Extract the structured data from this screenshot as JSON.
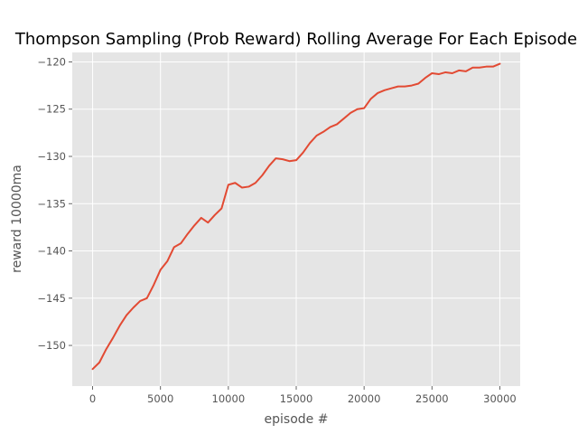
{
  "chart_data": {
    "type": "line",
    "title": "Thompson Sampling (Prob Reward) Rolling Average For Each Episode",
    "xlabel": "episode #",
    "ylabel": "reward 10000ma",
    "xlim": [
      -1500,
      31500
    ],
    "ylim": [
      -154.3,
      -119.0
    ],
    "xticks": [
      0,
      5000,
      10000,
      15000,
      20000,
      25000,
      30000
    ],
    "xtick_labels": [
      "0",
      "5000",
      "10000",
      "15000",
      "20000",
      "25000",
      "30000"
    ],
    "yticks": [
      -150,
      -145,
      -140,
      -135,
      -130,
      -125,
      -120
    ],
    "ytick_labels": [
      "−150",
      "−145",
      "−140",
      "−135",
      "−130",
      "−125",
      "−120"
    ],
    "grid": true,
    "legend": "none",
    "series": [
      {
        "x": [
          0,
          500,
          1000,
          1500,
          2000,
          2500,
          3000,
          3500,
          4000,
          4500,
          5000,
          5500,
          6000,
          6500,
          7000,
          7500,
          8000,
          8500,
          9000,
          9500,
          10000,
          10500,
          11000,
          11500,
          12000,
          12500,
          13000,
          13500,
          14000,
          14500,
          15000,
          15500,
          16000,
          16500,
          17000,
          17500,
          18000,
          18500,
          19000,
          19500,
          20000,
          20500,
          21000,
          21500,
          22000,
          22500,
          23000,
          23500,
          24000,
          24500,
          25000,
          25500,
          26000,
          26500,
          27000,
          27500,
          28000,
          28500,
          29000,
          29500,
          30000
        ],
        "values": [
          -152.5,
          -151.8,
          -150.4,
          -149.2,
          -147.9,
          -146.8,
          -146.0,
          -145.3,
          -145.0,
          -143.6,
          -142.0,
          -141.1,
          -139.6,
          -139.2,
          -138.2,
          -137.3,
          -136.5,
          -137.0,
          -136.2,
          -135.5,
          -133.0,
          -132.8,
          -133.3,
          -133.2,
          -132.8,
          -132.0,
          -131.0,
          -130.2,
          -130.3,
          -130.5,
          -130.4,
          -129.6,
          -128.6,
          -127.8,
          -127.4,
          -126.9,
          -126.6,
          -126.0,
          -125.4,
          -125.0,
          -124.9,
          -123.9,
          -123.3,
          -123.0,
          -122.8,
          -122.6,
          -122.6,
          -122.5,
          -122.3,
          -121.7,
          -121.2,
          -121.3,
          -121.1,
          -121.2,
          -120.9,
          -121.0,
          -120.6,
          -120.6,
          -120.5,
          -120.5,
          -120.2
        ],
        "color": "#E24A33"
      }
    ],
    "colors": {
      "plot_background": "#E5E5E5",
      "grid": "#FFFFFF",
      "line": "#E24A33",
      "tick": "#555555",
      "title": "#000000"
    }
  }
}
